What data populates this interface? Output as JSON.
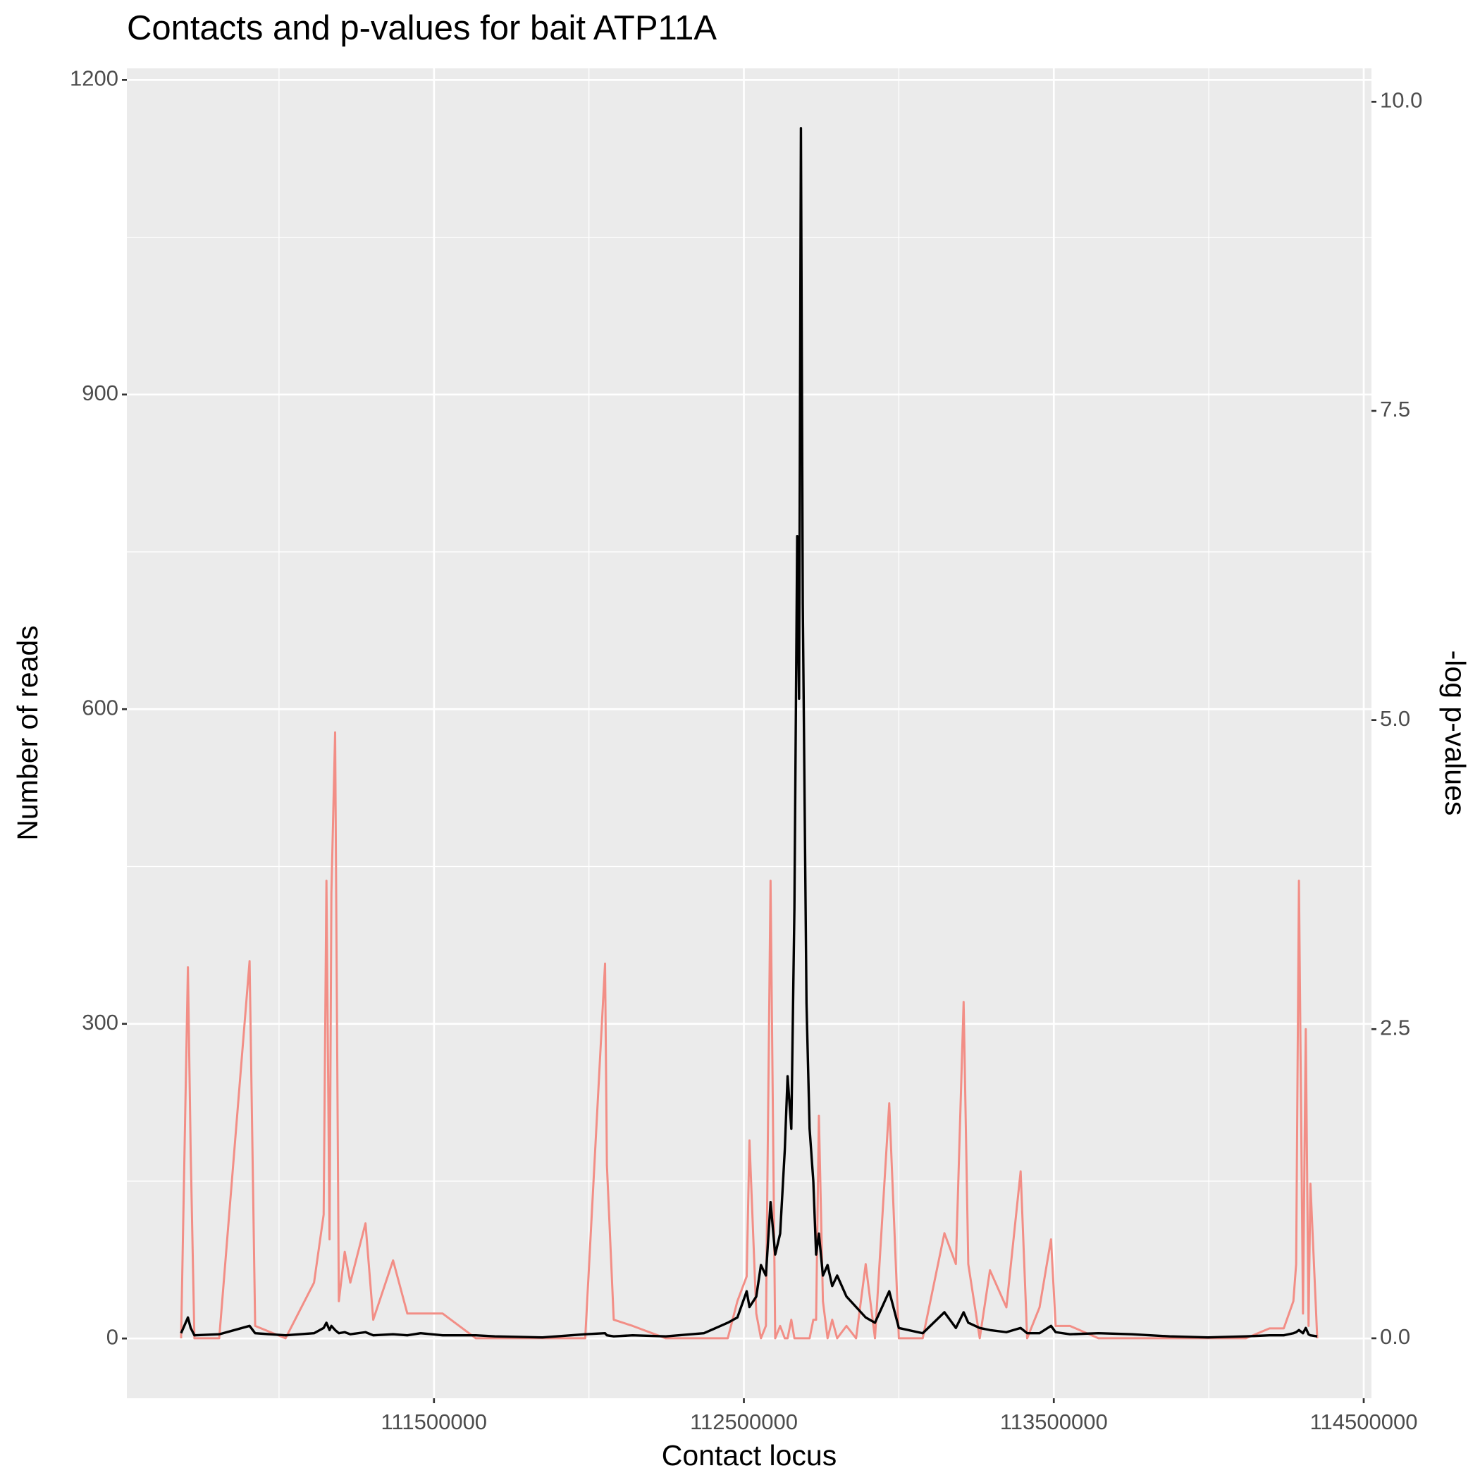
{
  "chart_data": {
    "type": "line",
    "title": "Contacts and p-values for bait ATP11A",
    "x_label": "Contact locus",
    "y_label": "Number of reads",
    "y2_label": "-log p-values",
    "xlim": [
      110509000,
      114525000
    ],
    "xticks": [
      111500000,
      112500000,
      113500000,
      114500000
    ],
    "ylim": [
      -57,
      1211
    ],
    "yticks": [
      0,
      300,
      600,
      900,
      1200
    ],
    "y2lim": [
      -0.485,
      10.27
    ],
    "y2ticks": [
      {
        "value": 0,
        "label": "0.0"
      },
      {
        "value": 2.5,
        "label": "2.5"
      },
      {
        "value": 5,
        "label": "5.0"
      },
      {
        "value": 7.5,
        "label": "7.5"
      },
      {
        "value": 10,
        "label": "10.0"
      }
    ],
    "grid": true,
    "x": [
      110684000,
      110706000,
      110715000,
      110727000,
      110807000,
      110905000,
      110923000,
      111021000,
      111113000,
      111144000,
      111153000,
      111163000,
      111169000,
      111181000,
      111193000,
      111212000,
      111230000,
      111279000,
      111304000,
      111368000,
      111414000,
      111457000,
      111528000,
      111635000,
      111696000,
      111850000,
      111988000,
      112052000,
      112058000,
      112080000,
      112141000,
      112248000,
      112371000,
      112448000,
      112479000,
      112509000,
      112518000,
      112540000,
      112555000,
      112571000,
      112586000,
      112601000,
      112617000,
      112632000,
      112641000,
      112653000,
      112663000,
      112672000,
      112678000,
      112684000,
      112690000,
      112696000,
      112702000,
      112712000,
      112724000,
      112733000,
      112742000,
      112755000,
      112770000,
      112785000,
      112801000,
      112831000,
      112862000,
      112893000,
      112923000,
      112969000,
      113000000,
      113077000,
      113147000,
      113184000,
      113209000,
      113224000,
      113261000,
      113294000,
      113347000,
      113393000,
      113414000,
      113454000,
      113491000,
      113506000,
      113552000,
      113644000,
      113752000,
      113874000,
      113997000,
      114120000,
      114196000,
      114242000,
      114273000,
      114282000,
      114291000,
      114304000,
      114313000,
      114322000,
      114328000,
      114350000
    ],
    "series": [
      {
        "color": "#f28e86",
        "axis": "y2",
        "values": [
          0,
          3.0,
          1.5,
          0,
          0,
          3.05,
          0.1,
          0,
          0.45,
          1.0,
          3.7,
          0.8,
          3.6,
          4.9,
          0.3,
          0.7,
          0.45,
          0.93,
          0.15,
          0.63,
          0.2,
          0.2,
          0.2,
          0,
          0,
          0,
          0,
          3.03,
          1.4,
          0.15,
          0.1,
          0,
          0,
          0,
          0.3,
          0.5,
          1.6,
          0.2,
          0,
          0.1,
          3.7,
          0,
          0.1,
          0,
          0,
          0.15,
          0,
          0,
          0,
          0,
          0,
          0,
          0,
          0,
          0.15,
          0.15,
          1.8,
          0.3,
          0,
          0.15,
          0,
          0.1,
          0,
          0.6,
          0,
          1.9,
          0,
          0,
          0.85,
          0.6,
          2.72,
          0.6,
          0,
          0.55,
          0.25,
          1.35,
          0,
          0.25,
          0.8,
          0.1,
          0.1,
          0,
          0,
          0,
          0,
          0,
          0.08,
          0.08,
          0.3,
          0.6,
          3.7,
          0.2,
          2.5,
          0.1,
          1.25,
          0
        ]
      },
      {
        "color": "#000000",
        "values": [
          5,
          20,
          10,
          3,
          4,
          12,
          5,
          3,
          5,
          10,
          15,
          8,
          12,
          8,
          5,
          6,
          4,
          6,
          3,
          4,
          3,
          5,
          3,
          3,
          2,
          1,
          4,
          5,
          3,
          2,
          3,
          2,
          5,
          15,
          20,
          45,
          30,
          40,
          70,
          60,
          130,
          80,
          100,
          180,
          250,
          200,
          410,
          765,
          610,
          1154,
          700,
          510,
          320,
          200,
          150,
          80,
          100,
          60,
          70,
          50,
          60,
          40,
          30,
          20,
          15,
          45,
          10,
          5,
          25,
          10,
          25,
          15,
          10,
          8,
          6,
          10,
          5,
          5,
          12,
          6,
          4,
          5,
          4,
          2,
          1,
          2,
          3,
          3,
          5,
          6,
          8,
          5,
          10,
          4,
          3,
          2
        ]
      }
    ]
  }
}
